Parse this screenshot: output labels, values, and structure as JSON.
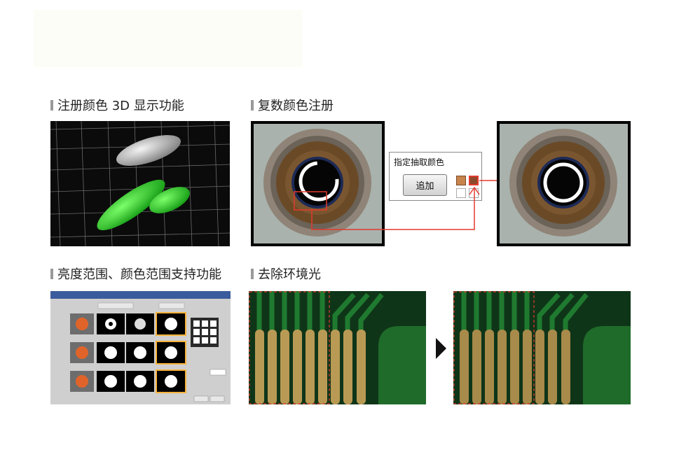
{
  "headings": {
    "h1": "注册颜色 3D 显示功能",
    "h2": "复数颜色注册",
    "h3": "亮度范围、颜色范围支持功能",
    "h4": "去除环境光"
  },
  "popup": {
    "title": "指定抽取颜色",
    "add_button": "追加",
    "swatch_colors": [
      "#c8844d",
      "#8b4a2b",
      "#ffffff",
      "#ffffff"
    ]
  },
  "colors": {
    "accent_red": "#e23a2e",
    "ellipsoid_green": "#2fcf2f",
    "ellipsoid_gray": "#cfcfcf"
  }
}
